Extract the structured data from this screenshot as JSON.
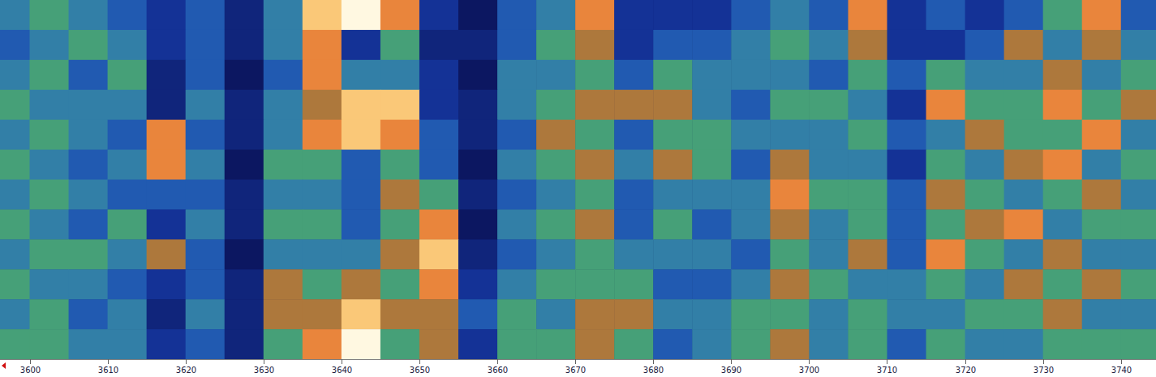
{
  "chart_data": {
    "type": "heatmap",
    "tick_labels": "x",
    "xlim": [
      3596.2,
      3744.5
    ],
    "xticks": [
      3600,
      3610,
      3620,
      3630,
      3640,
      3650,
      3660,
      3670,
      3680,
      3690,
      3700,
      3710,
      3720,
      3730,
      3740
    ],
    "x_bins": [
      3595,
      3600,
      3605,
      3610,
      3615,
      3620,
      3625,
      3630,
      3635,
      3640,
      3645,
      3650,
      3655,
      3660,
      3665,
      3670,
      3675,
      3680,
      3685,
      3690,
      3695,
      3700,
      3705,
      3710,
      3715,
      3720,
      3725,
      3730,
      3735,
      3740,
      3745
    ],
    "color_range": [
      0,
      10
    ],
    "cells": [
      [
        5,
        6,
        5,
        4,
        3,
        4,
        2,
        5,
        9,
        10,
        8,
        3,
        1,
        4,
        5,
        8,
        3,
        3,
        3,
        4,
        5,
        4,
        8,
        3,
        4,
        3,
        4,
        6,
        8,
        4
      ],
      [
        4,
        5,
        6,
        5,
        3,
        4,
        2,
        5,
        8,
        3,
        6,
        2,
        2,
        4,
        6,
        7,
        3,
        4,
        4,
        5,
        6,
        5,
        7,
        3,
        3,
        4,
        7,
        5,
        7,
        5
      ],
      [
        5,
        6,
        4,
        6,
        2,
        4,
        1,
        4,
        8,
        5,
        5,
        3,
        1,
        5,
        5,
        6,
        4,
        6,
        5,
        5,
        5,
        4,
        6,
        4,
        6,
        5,
        5,
        7,
        5,
        6
      ],
      [
        6,
        5,
        5,
        5,
        2,
        5,
        2,
        5,
        7,
        9,
        9,
        3,
        2,
        5,
        6,
        7,
        7,
        7,
        5,
        4,
        6,
        6,
        5,
        3,
        8,
        6,
        6,
        8,
        6,
        7
      ],
      [
        5,
        6,
        5,
        4,
        8,
        4,
        2,
        5,
        8,
        9,
        8,
        4,
        2,
        4,
        7,
        6,
        4,
        6,
        6,
        5,
        5,
        5,
        6,
        4,
        5,
        7,
        6,
        6,
        8,
        5
      ],
      [
        6,
        5,
        4,
        5,
        8,
        5,
        1,
        6,
        6,
        4,
        6,
        4,
        1,
        5,
        6,
        7,
        5,
        7,
        6,
        4,
        7,
        5,
        5,
        3,
        6,
        5,
        7,
        8,
        5,
        6
      ],
      [
        5,
        6,
        5,
        4,
        4,
        4,
        2,
        5,
        5,
        4,
        7,
        6,
        2,
        4,
        5,
        6,
        4,
        5,
        5,
        5,
        8,
        6,
        6,
        4,
        7,
        6,
        5,
        6,
        7,
        5
      ],
      [
        6,
        5,
        4,
        6,
        3,
        5,
        2,
        6,
        6,
        4,
        6,
        8,
        1,
        5,
        6,
        7,
        4,
        6,
        4,
        5,
        7,
        5,
        6,
        4,
        6,
        7,
        8,
        5,
        6,
        6
      ],
      [
        5,
        6,
        6,
        5,
        7,
        4,
        1,
        5,
        5,
        5,
        7,
        9,
        2,
        4,
        5,
        6,
        5,
        5,
        5,
        4,
        6,
        5,
        7,
        4,
        8,
        6,
        5,
        7,
        5,
        5
      ],
      [
        6,
        5,
        5,
        4,
        3,
        4,
        2,
        7,
        6,
        7,
        6,
        8,
        3,
        5,
        6,
        6,
        6,
        4,
        4,
        5,
        7,
        6,
        5,
        5,
        6,
        5,
        7,
        6,
        7,
        6
      ],
      [
        5,
        6,
        4,
        5,
        2,
        5,
        2,
        7,
        7,
        9,
        7,
        7,
        4,
        6,
        5,
        7,
        7,
        5,
        5,
        6,
        6,
        5,
        6,
        5,
        5,
        6,
        6,
        7,
        5,
        5
      ],
      [
        6,
        6,
        5,
        5,
        3,
        4,
        2,
        6,
        8,
        10,
        6,
        7,
        3,
        6,
        6,
        7,
        6,
        4,
        5,
        6,
        7,
        5,
        6,
        4,
        6,
        5,
        5,
        6,
        6,
        6
      ]
    ]
  }
}
